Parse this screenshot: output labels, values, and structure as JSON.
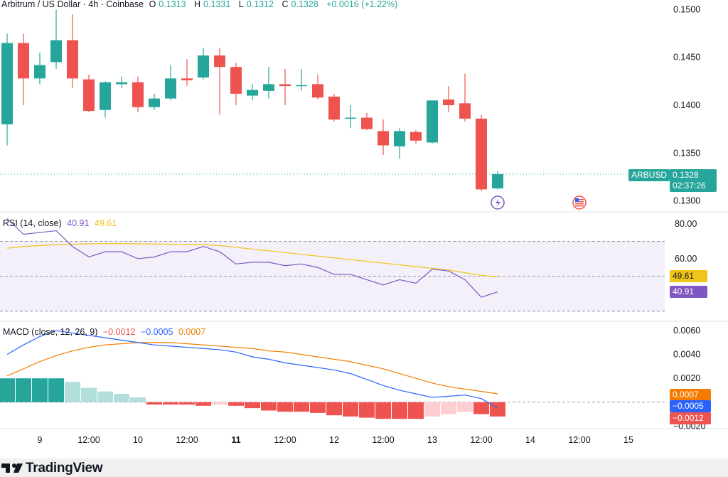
{
  "header": {
    "symbol": "Arbitrum / US Dollar · 4h · Coinbase",
    "o_label": "O",
    "o": "0.1313",
    "h_label": "H",
    "h": "0.1331",
    "l_label": "L",
    "l": "0.1312",
    "c_label": "C",
    "c": "0.1328",
    "change": "+0.0016 (+1.22%)"
  },
  "rsi_header": {
    "label": "RSI (14, close)",
    "rsi": "40.91",
    "ma": "49.61"
  },
  "macd_header": {
    "label": "MACD (close, 12, 26, 9)",
    "hist": "−0.0012",
    "macd": "−0.0005",
    "signal": "0.0007"
  },
  "price_tag": {
    "ticker": "ARBUSD",
    "price": "0.1328",
    "countdown": "02:37:26"
  },
  "rsi_tags": {
    "ma": "49.61",
    "rsi": "40.91"
  },
  "macd_tags": {
    "signal": "0.0007",
    "macd": "−0.0005",
    "hist": "−0.0012"
  },
  "footer": {
    "brand": "TradingView"
  },
  "colors": {
    "up": "#26a69a",
    "down": "#ef5350",
    "rsi": "#7e57c2",
    "rsi_ma": "#f0c419",
    "macd": "#2962ff",
    "signal": "#f57c00"
  },
  "icons": [
    "flash-icon",
    "us-flag-icon",
    "tradingview-logo-icon"
  ],
  "chart_data": [
    {
      "type": "candlestick",
      "title": "Arbitrum / US Dollar · 4h · Coinbase",
      "ylim": [
        0.129,
        0.151
      ],
      "yticks": [
        "0.1300",
        "0.1350",
        "0.1400",
        "0.1450",
        "0.1500"
      ],
      "xticks": [
        "9",
        "12:00",
        "10",
        "12:00",
        "11",
        "12:00",
        "12",
        "12:00",
        "13",
        "12:00",
        "14",
        "12:00",
        "15"
      ],
      "candles": [
        {
          "o": 0.138,
          "h": 0.1475,
          "l": 0.1358,
          "c": 0.1465
        },
        {
          "o": 0.1465,
          "h": 0.1475,
          "l": 0.14,
          "c": 0.1428
        },
        {
          "o": 0.1428,
          "h": 0.1455,
          "l": 0.1422,
          "c": 0.1442
        },
        {
          "o": 0.1445,
          "h": 0.15,
          "l": 0.1438,
          "c": 0.1468
        },
        {
          "o": 0.1468,
          "h": 0.1495,
          "l": 0.1418,
          "c": 0.1428
        },
        {
          "o": 0.1427,
          "h": 0.1432,
          "l": 0.1393,
          "c": 0.1394
        },
        {
          "o": 0.1395,
          "h": 0.1425,
          "l": 0.1387,
          "c": 0.1424
        },
        {
          "o": 0.1422,
          "h": 0.143,
          "l": 0.1418,
          "c": 0.1424
        },
        {
          "o": 0.1424,
          "h": 0.143,
          "l": 0.1393,
          "c": 0.1398
        },
        {
          "o": 0.1398,
          "h": 0.1412,
          "l": 0.1395,
          "c": 0.1407
        },
        {
          "o": 0.1407,
          "h": 0.1442,
          "l": 0.1405,
          "c": 0.1428
        },
        {
          "o": 0.1428,
          "h": 0.1448,
          "l": 0.142,
          "c": 0.1426
        },
        {
          "o": 0.1429,
          "h": 0.146,
          "l": 0.1427,
          "c": 0.1452
        },
        {
          "o": 0.1452,
          "h": 0.146,
          "l": 0.139,
          "c": 0.144
        },
        {
          "o": 0.144,
          "h": 0.1444,
          "l": 0.14,
          "c": 0.1412
        },
        {
          "o": 0.141,
          "h": 0.1422,
          "l": 0.1405,
          "c": 0.1416
        },
        {
          "o": 0.1415,
          "h": 0.144,
          "l": 0.1407,
          "c": 0.1422
        },
        {
          "o": 0.1422,
          "h": 0.1438,
          "l": 0.14,
          "c": 0.142
        },
        {
          "o": 0.142,
          "h": 0.1438,
          "l": 0.1415,
          "c": 0.1421
        },
        {
          "o": 0.1422,
          "h": 0.1432,
          "l": 0.1406,
          "c": 0.1408
        },
        {
          "o": 0.1409,
          "h": 0.1412,
          "l": 0.1383,
          "c": 0.1385
        },
        {
          "o": 0.1387,
          "h": 0.14,
          "l": 0.1376,
          "c": 0.1387
        },
        {
          "o": 0.1387,
          "h": 0.1392,
          "l": 0.1374,
          "c": 0.1375
        },
        {
          "o": 0.1373,
          "h": 0.1385,
          "l": 0.1348,
          "c": 0.1358
        },
        {
          "o": 0.1357,
          "h": 0.1376,
          "l": 0.1344,
          "c": 0.1373
        },
        {
          "o": 0.1372,
          "h": 0.1374,
          "l": 0.136,
          "c": 0.1363
        },
        {
          "o": 0.1361,
          "h": 0.1405,
          "l": 0.136,
          "c": 0.1405
        },
        {
          "o": 0.1406,
          "h": 0.142,
          "l": 0.1393,
          "c": 0.14
        },
        {
          "o": 0.1402,
          "h": 0.1433,
          "l": 0.1383,
          "c": 0.1386
        },
        {
          "o": 0.1386,
          "h": 0.139,
          "l": 0.131,
          "c": 0.1312
        },
        {
          "o": 0.1313,
          "h": 0.1331,
          "l": 0.1312,
          "c": 0.1328
        }
      ]
    },
    {
      "type": "line",
      "title": "RSI (14, close)",
      "ylim": [
        25,
        86
      ],
      "yticks": [
        "60.00",
        "80.00"
      ],
      "band": [
        30,
        70
      ],
      "series": [
        {
          "name": "RSI",
          "values": [
            83,
            74,
            75,
            76,
            67,
            61,
            64,
            64,
            60,
            61,
            64,
            64,
            67,
            64,
            57,
            58,
            58,
            56,
            57,
            55,
            51,
            51,
            48,
            45,
            48,
            46,
            54,
            53,
            48,
            38,
            41
          ]
        },
        {
          "name": "RSI MA",
          "values": [
            66,
            67,
            67.5,
            68,
            68.3,
            68.5,
            68.6,
            68.6,
            68.5,
            68.4,
            68.3,
            68.2,
            68,
            67.5,
            66.5,
            65.5,
            64.5,
            63.5,
            62.5,
            61.5,
            60.5,
            59.5,
            58.5,
            57.5,
            56.5,
            55.5,
            54.5,
            53.5,
            52,
            50.5,
            49.6
          ]
        }
      ]
    },
    {
      "type": "bar",
      "title": "MACD (close, 12, 26, 9)",
      "ylim": [
        -0.0021,
        0.0066
      ],
      "yticks": [
        "0.0020",
        "0.0040",
        "0.0060",
        "−0.0020"
      ],
      "series": [
        {
          "name": "Histogram",
          "values": [
            0.002,
            0.002,
            0.002,
            0.002,
            0.0017,
            0.0012,
            0.0009,
            0.0007,
            0.0004,
            -0.0002,
            -0.0002,
            -0.0002,
            -0.0003,
            -0.0002,
            -0.0003,
            -0.0005,
            -0.0007,
            -0.0008,
            -0.0008,
            -0.0009,
            -0.0011,
            -0.0012,
            -0.0013,
            -0.0014,
            -0.0014,
            -0.0014,
            -0.0012,
            -0.001,
            -0.0008,
            -0.001,
            -0.0012
          ]
        },
        {
          "name": "MACD",
          "values": [
            0.004,
            0.0048,
            0.0055,
            0.006,
            0.0058,
            0.0056,
            0.0054,
            0.0052,
            0.005,
            0.0048,
            0.0047,
            0.0046,
            0.0045,
            0.0044,
            0.0042,
            0.0038,
            0.0036,
            0.0033,
            0.0031,
            0.0029,
            0.0027,
            0.0024,
            0.0019,
            0.0014,
            0.001,
            0.0007,
            0.0004,
            0.0005,
            0.0006,
            0.0003,
            -0.0005
          ]
        },
        {
          "name": "Signal",
          "values": [
            0.0022,
            0.0028,
            0.0034,
            0.0039,
            0.0043,
            0.0046,
            0.0048,
            0.0049,
            0.005,
            0.005,
            0.005,
            0.0049,
            0.0048,
            0.0047,
            0.0046,
            0.0045,
            0.0043,
            0.0042,
            0.004,
            0.0038,
            0.0036,
            0.0034,
            0.0031,
            0.0028,
            0.0024,
            0.002,
            0.0016,
            0.0013,
            0.0011,
            0.0009,
            0.0007
          ]
        }
      ]
    }
  ]
}
